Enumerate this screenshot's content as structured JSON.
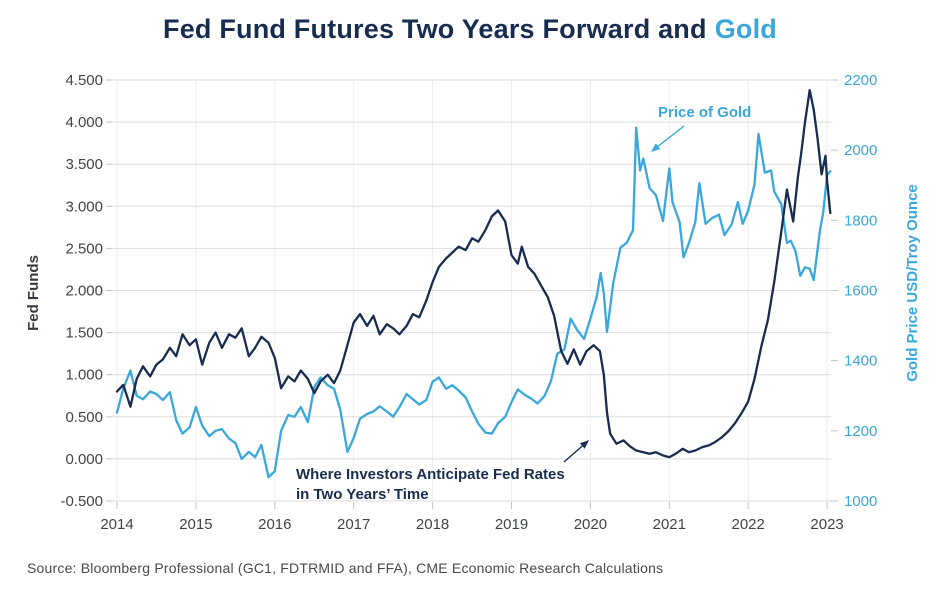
{
  "title": {
    "main": "Fed Fund Futures Two Years Forward and",
    "highlight": "Gold"
  },
  "source": "Source: Bloomberg Professional (GC1, FDTRMID and FFA), CME Economic Research Calculations",
  "colors": {
    "navy": "#172c4e",
    "blue": "#3aa7db",
    "grid_horizontal": "#dcdddf",
    "grid_vertical": "#eeeeef",
    "tick_mark": "#c0c3c6",
    "tick_text": "#3f444a"
  },
  "annotations": {
    "gold": {
      "text": "Price of Gold"
    },
    "fed": {
      "line1": "Where Investors Anticipate Fed Rates",
      "line2": "in Two Years’ Time"
    }
  },
  "chart_data": {
    "type": "line",
    "title": "Fed Fund Futures Two Years Forward and Gold",
    "grid": true,
    "legend_position": "none",
    "left_axis": {
      "label": "Fed Funds",
      "min": -0.5,
      "max": 4.5,
      "tick_step": 0.5,
      "tick_values": [
        4.5,
        4.0,
        3.5,
        3.0,
        2.5,
        2.0,
        1.5,
        1.0,
        0.5,
        0.0,
        -0.5
      ],
      "tick_labels": [
        "4.500",
        "4.000",
        "3.500",
        "3.000",
        "2.500",
        "2.000",
        "1.500",
        "1.000",
        "0.500",
        "0.000",
        "-0.500"
      ]
    },
    "right_axis": {
      "label": "Gold Price USD/Troy Ounce",
      "min": 1000,
      "max": 2200,
      "tick_step": 200,
      "tick_values": [
        2200,
        2000,
        1800,
        1600,
        1400,
        1200,
        1000
      ],
      "tick_labels": [
        "2200",
        "2000",
        "1800",
        "1600",
        "1400",
        "1200",
        "1000"
      ]
    },
    "x_axis": {
      "min": 2014,
      "max": 2023.1,
      "tick_values": [
        2014,
        2015,
        2016,
        2017,
        2018,
        2019,
        2020,
        2021,
        2022,
        2023
      ],
      "tick_labels": [
        "2014",
        "2015",
        "2016",
        "2017",
        "2018",
        "2019",
        "2020",
        "2021",
        "2022",
        "2023"
      ]
    },
    "series": [
      {
        "id": "gold",
        "name": "Price of Gold",
        "axis": "right",
        "color_key": "blue",
        "points": [
          [
            2014.0,
            1252
          ],
          [
            2014.08,
            1320
          ],
          [
            2014.17,
            1372
          ],
          [
            2014.25,
            1300
          ],
          [
            2014.33,
            1290
          ],
          [
            2014.42,
            1312
          ],
          [
            2014.5,
            1305
          ],
          [
            2014.58,
            1288
          ],
          [
            2014.67,
            1310
          ],
          [
            2014.75,
            1230
          ],
          [
            2014.83,
            1192
          ],
          [
            2014.92,
            1210
          ],
          [
            2015.0,
            1268
          ],
          [
            2015.08,
            1215
          ],
          [
            2015.17,
            1185
          ],
          [
            2015.25,
            1200
          ],
          [
            2015.33,
            1205
          ],
          [
            2015.42,
            1178
          ],
          [
            2015.5,
            1165
          ],
          [
            2015.58,
            1120
          ],
          [
            2015.67,
            1140
          ],
          [
            2015.75,
            1125
          ],
          [
            2015.83,
            1160
          ],
          [
            2015.92,
            1068
          ],
          [
            2016.0,
            1085
          ],
          [
            2016.08,
            1200
          ],
          [
            2016.17,
            1245
          ],
          [
            2016.25,
            1240
          ],
          [
            2016.33,
            1268
          ],
          [
            2016.42,
            1225
          ],
          [
            2016.5,
            1325
          ],
          [
            2016.58,
            1352
          ],
          [
            2016.67,
            1330
          ],
          [
            2016.75,
            1320
          ],
          [
            2016.83,
            1260
          ],
          [
            2016.92,
            1140
          ],
          [
            2017.0,
            1180
          ],
          [
            2017.08,
            1235
          ],
          [
            2017.17,
            1248
          ],
          [
            2017.25,
            1255
          ],
          [
            2017.33,
            1270
          ],
          [
            2017.42,
            1255
          ],
          [
            2017.5,
            1240
          ],
          [
            2017.58,
            1268
          ],
          [
            2017.67,
            1305
          ],
          [
            2017.75,
            1290
          ],
          [
            2017.83,
            1275
          ],
          [
            2017.92,
            1288
          ],
          [
            2018.0,
            1340
          ],
          [
            2018.08,
            1352
          ],
          [
            2018.17,
            1320
          ],
          [
            2018.25,
            1330
          ],
          [
            2018.33,
            1315
          ],
          [
            2018.42,
            1295
          ],
          [
            2018.5,
            1255
          ],
          [
            2018.58,
            1220
          ],
          [
            2018.67,
            1195
          ],
          [
            2018.75,
            1192
          ],
          [
            2018.83,
            1222
          ],
          [
            2018.92,
            1240
          ],
          [
            2019.0,
            1282
          ],
          [
            2019.08,
            1318
          ],
          [
            2019.17,
            1302
          ],
          [
            2019.25,
            1292
          ],
          [
            2019.33,
            1278
          ],
          [
            2019.42,
            1300
          ],
          [
            2019.5,
            1342
          ],
          [
            2019.58,
            1420
          ],
          [
            2019.67,
            1432
          ],
          [
            2019.75,
            1520
          ],
          [
            2019.83,
            1488
          ],
          [
            2019.92,
            1462
          ],
          [
            2020.0,
            1520
          ],
          [
            2020.08,
            1582
          ],
          [
            2020.13,
            1650
          ],
          [
            2020.17,
            1592
          ],
          [
            2020.21,
            1482
          ],
          [
            2020.29,
            1622
          ],
          [
            2020.38,
            1722
          ],
          [
            2020.46,
            1736
          ],
          [
            2020.54,
            1772
          ],
          [
            2020.58,
            2064
          ],
          [
            2020.63,
            1942
          ],
          [
            2020.67,
            1976
          ],
          [
            2020.75,
            1892
          ],
          [
            2020.83,
            1872
          ],
          [
            2020.92,
            1798
          ],
          [
            2021.0,
            1948
          ],
          [
            2021.04,
            1852
          ],
          [
            2021.13,
            1795
          ],
          [
            2021.18,
            1695
          ],
          [
            2021.25,
            1736
          ],
          [
            2021.33,
            1795
          ],
          [
            2021.38,
            1906
          ],
          [
            2021.46,
            1790
          ],
          [
            2021.54,
            1806
          ],
          [
            2021.63,
            1816
          ],
          [
            2021.7,
            1758
          ],
          [
            2021.79,
            1788
          ],
          [
            2021.87,
            1852
          ],
          [
            2021.93,
            1790
          ],
          [
            2022.0,
            1828
          ],
          [
            2022.08,
            1902
          ],
          [
            2022.13,
            2046
          ],
          [
            2022.21,
            1936
          ],
          [
            2022.29,
            1942
          ],
          [
            2022.33,
            1882
          ],
          [
            2022.42,
            1846
          ],
          [
            2022.49,
            1736
          ],
          [
            2022.54,
            1742
          ],
          [
            2022.6,
            1712
          ],
          [
            2022.66,
            1642
          ],
          [
            2022.72,
            1666
          ],
          [
            2022.78,
            1662
          ],
          [
            2022.83,
            1630
          ],
          [
            2022.91,
            1772
          ],
          [
            2022.95,
            1822
          ],
          [
            2023.0,
            1928
          ],
          [
            2023.04,
            1940
          ]
        ]
      },
      {
        "id": "fed-futures",
        "name": "Fed Fund Futures Two Years Forward",
        "axis": "left",
        "color_key": "navy",
        "points": [
          [
            2014.0,
            0.8
          ],
          [
            2014.08,
            0.88
          ],
          [
            2014.17,
            0.62
          ],
          [
            2014.25,
            0.95
          ],
          [
            2014.33,
            1.1
          ],
          [
            2014.42,
            0.98
          ],
          [
            2014.5,
            1.12
          ],
          [
            2014.58,
            1.18
          ],
          [
            2014.67,
            1.32
          ],
          [
            2014.75,
            1.22
          ],
          [
            2014.83,
            1.48
          ],
          [
            2014.92,
            1.35
          ],
          [
            2015.0,
            1.42
          ],
          [
            2015.08,
            1.12
          ],
          [
            2015.17,
            1.38
          ],
          [
            2015.25,
            1.5
          ],
          [
            2015.33,
            1.32
          ],
          [
            2015.42,
            1.48
          ],
          [
            2015.5,
            1.44
          ],
          [
            2015.58,
            1.55
          ],
          [
            2015.67,
            1.22
          ],
          [
            2015.75,
            1.32
          ],
          [
            2015.83,
            1.45
          ],
          [
            2015.92,
            1.38
          ],
          [
            2016.0,
            1.2
          ],
          [
            2016.08,
            0.84
          ],
          [
            2016.17,
            0.98
          ],
          [
            2016.25,
            0.92
          ],
          [
            2016.33,
            1.05
          ],
          [
            2016.42,
            0.95
          ],
          [
            2016.5,
            0.78
          ],
          [
            2016.58,
            0.92
          ],
          [
            2016.67,
            1.0
          ],
          [
            2016.75,
            0.9
          ],
          [
            2016.83,
            1.05
          ],
          [
            2016.92,
            1.35
          ],
          [
            2017.0,
            1.62
          ],
          [
            2017.08,
            1.72
          ],
          [
            2017.17,
            1.58
          ],
          [
            2017.25,
            1.7
          ],
          [
            2017.33,
            1.48
          ],
          [
            2017.42,
            1.6
          ],
          [
            2017.5,
            1.55
          ],
          [
            2017.58,
            1.48
          ],
          [
            2017.67,
            1.58
          ],
          [
            2017.75,
            1.72
          ],
          [
            2017.83,
            1.68
          ],
          [
            2017.92,
            1.88
          ],
          [
            2018.0,
            2.1
          ],
          [
            2018.08,
            2.28
          ],
          [
            2018.17,
            2.38
          ],
          [
            2018.25,
            2.45
          ],
          [
            2018.33,
            2.52
          ],
          [
            2018.42,
            2.48
          ],
          [
            2018.5,
            2.62
          ],
          [
            2018.58,
            2.58
          ],
          [
            2018.67,
            2.72
          ],
          [
            2018.75,
            2.88
          ],
          [
            2018.83,
            2.95
          ],
          [
            2018.92,
            2.82
          ],
          [
            2019.0,
            2.42
          ],
          [
            2019.08,
            2.32
          ],
          [
            2019.13,
            2.52
          ],
          [
            2019.21,
            2.28
          ],
          [
            2019.29,
            2.2
          ],
          [
            2019.38,
            2.05
          ],
          [
            2019.46,
            1.92
          ],
          [
            2019.54,
            1.7
          ],
          [
            2019.63,
            1.28
          ],
          [
            2019.71,
            1.13
          ],
          [
            2019.79,
            1.3
          ],
          [
            2019.87,
            1.12
          ],
          [
            2019.95,
            1.28
          ],
          [
            2020.04,
            1.35
          ],
          [
            2020.12,
            1.28
          ],
          [
            2020.17,
            1.0
          ],
          [
            2020.21,
            0.55
          ],
          [
            2020.25,
            0.3
          ],
          [
            2020.33,
            0.18
          ],
          [
            2020.42,
            0.22
          ],
          [
            2020.5,
            0.15
          ],
          [
            2020.58,
            0.1
          ],
          [
            2020.67,
            0.08
          ],
          [
            2020.75,
            0.06
          ],
          [
            2020.83,
            0.08
          ],
          [
            2020.92,
            0.04
          ],
          [
            2021.0,
            0.02
          ],
          [
            2021.08,
            0.06
          ],
          [
            2021.17,
            0.12
          ],
          [
            2021.25,
            0.08
          ],
          [
            2021.33,
            0.1
          ],
          [
            2021.42,
            0.14
          ],
          [
            2021.5,
            0.16
          ],
          [
            2021.58,
            0.2
          ],
          [
            2021.67,
            0.26
          ],
          [
            2021.75,
            0.33
          ],
          [
            2021.83,
            0.42
          ],
          [
            2021.92,
            0.55
          ],
          [
            2022.0,
            0.68
          ],
          [
            2022.08,
            0.95
          ],
          [
            2022.17,
            1.35
          ],
          [
            2022.25,
            1.65
          ],
          [
            2022.33,
            2.1
          ],
          [
            2022.42,
            2.7
          ],
          [
            2022.49,
            3.2
          ],
          [
            2022.57,
            2.82
          ],
          [
            2022.63,
            3.35
          ],
          [
            2022.67,
            3.62
          ],
          [
            2022.72,
            4.0
          ],
          [
            2022.78,
            4.38
          ],
          [
            2022.83,
            4.15
          ],
          [
            2022.88,
            3.8
          ],
          [
            2022.93,
            3.38
          ],
          [
            2022.98,
            3.6
          ],
          [
            2023.0,
            3.3
          ],
          [
            2023.04,
            2.92
          ]
        ]
      }
    ]
  }
}
